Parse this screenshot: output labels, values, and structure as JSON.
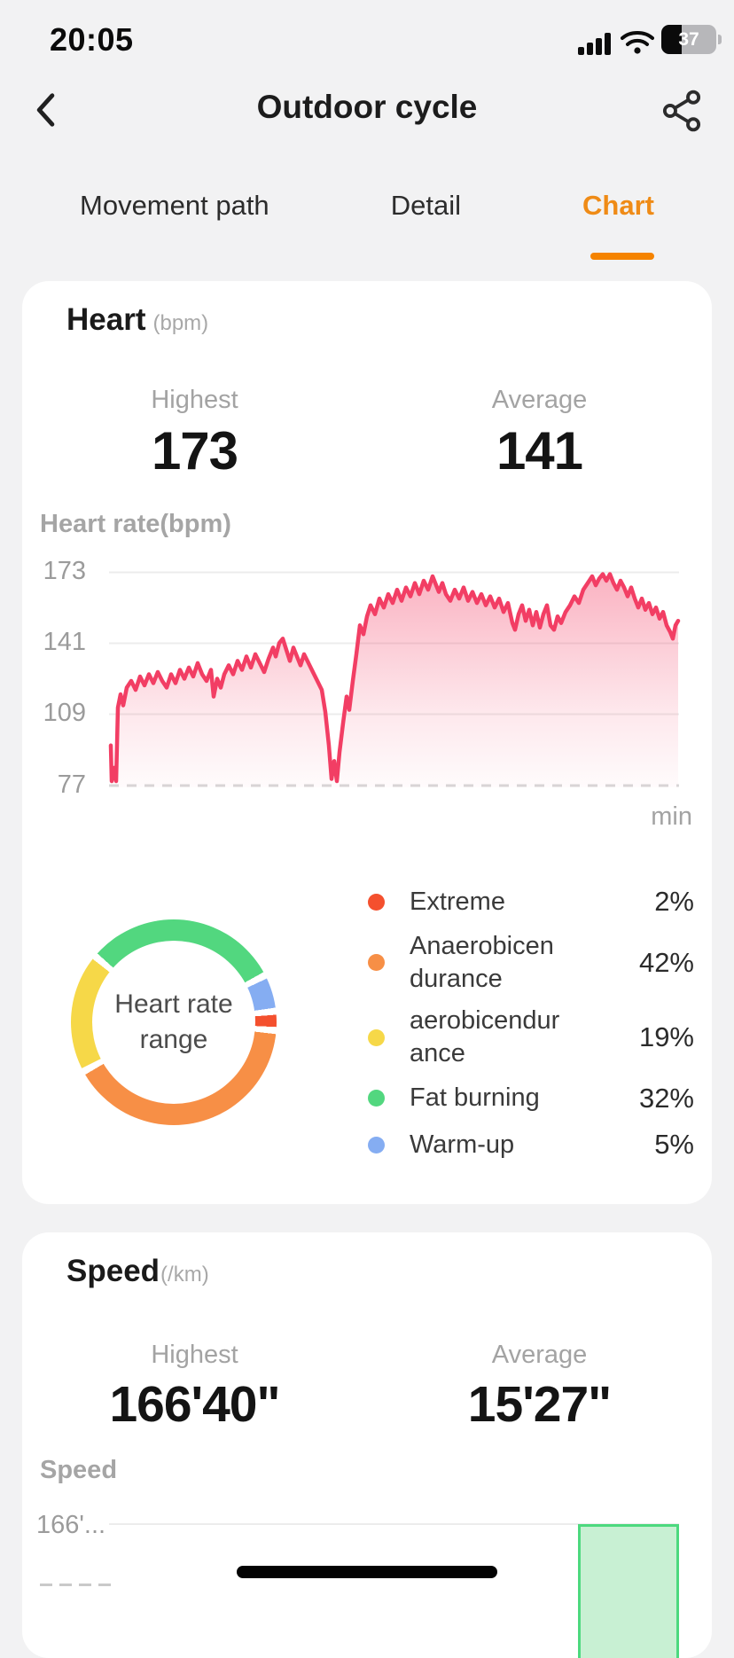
{
  "status_bar": {
    "time": "20:05",
    "battery": "37"
  },
  "header": {
    "title": "Outdoor cycle"
  },
  "tabs": [
    {
      "label": "Movement path",
      "active": false
    },
    {
      "label": "Detail",
      "active": false
    },
    {
      "label": "Chart",
      "active": true
    }
  ],
  "colors": {
    "accent_orange": "#ef8b16",
    "heart_line": "#f23e64",
    "card_bg": "#ffffff",
    "page_bg": "#f2f2f3"
  },
  "heart_card": {
    "title": "Heart",
    "unit": "(bpm)",
    "highest_label": "Highest",
    "highest_value": "173",
    "average_label": "Average",
    "average_value": "141",
    "donut_center_line1": "Heart rate",
    "donut_center_line2": "range"
  },
  "speed_card": {
    "title": "Speed",
    "unit": "(/km)",
    "highest_label": "Highest",
    "highest_value": "166'40\"",
    "average_label": "Average",
    "average_value": "15'27\""
  },
  "chart_data": [
    {
      "type": "line",
      "title": "Heart rate(bpm)",
      "ylabel": "Heart rate(bpm)",
      "x_unit": "min",
      "ylim": [
        77,
        173
      ],
      "ytick_labels": [
        "173",
        "141",
        "109",
        "77"
      ],
      "grid": true,
      "line_color": "#f23e64",
      "series": [
        {
          "name": "Heart rate",
          "points": [
            [
              2,
              95
            ],
            [
              3,
              79
            ],
            [
              6,
              85
            ],
            [
              8,
              79
            ],
            [
              10,
              112
            ],
            [
              13,
              118
            ],
            [
              16,
              113
            ],
            [
              20,
              121
            ],
            [
              25,
              124
            ],
            [
              30,
              120
            ],
            [
              35,
              126
            ],
            [
              40,
              122
            ],
            [
              45,
              127
            ],
            [
              50,
              123
            ],
            [
              55,
              128
            ],
            [
              60,
              124
            ],
            [
              65,
              121
            ],
            [
              70,
              127
            ],
            [
              75,
              123
            ],
            [
              80,
              129
            ],
            [
              85,
              125
            ],
            [
              90,
              130
            ],
            [
              95,
              126
            ],
            [
              100,
              132
            ],
            [
              105,
              127
            ],
            [
              110,
              124
            ],
            [
              115,
              129
            ],
            [
              118,
              117
            ],
            [
              122,
              125
            ],
            [
              126,
              121
            ],
            [
              130,
              127
            ],
            [
              135,
              131
            ],
            [
              140,
              127
            ],
            [
              145,
              133
            ],
            [
              150,
              129
            ],
            [
              155,
              135
            ],
            [
              160,
              130
            ],
            [
              165,
              136
            ],
            [
              170,
              132
            ],
            [
              175,
              128
            ],
            [
              180,
              134
            ],
            [
              185,
              139
            ],
            [
              188,
              135
            ],
            [
              192,
              141
            ],
            [
              196,
              143
            ],
            [
              200,
              138
            ],
            [
              204,
              133
            ],
            [
              208,
              139
            ],
            [
              212,
              135
            ],
            [
              216,
              131
            ],
            [
              220,
              136
            ],
            [
              225,
              132
            ],
            [
              230,
              128
            ],
            [
              235,
              124
            ],
            [
              240,
              120
            ],
            [
              244,
              110
            ],
            [
              248,
              95
            ],
            [
              251,
              80
            ],
            [
              254,
              88
            ],
            [
              257,
              79
            ],
            [
              260,
              92
            ],
            [
              264,
              105
            ],
            [
              268,
              117
            ],
            [
              271,
              111
            ],
            [
              275,
              124
            ],
            [
              279,
              136
            ],
            [
              283,
              149
            ],
            [
              287,
              145
            ],
            [
              291,
              153
            ],
            [
              295,
              158
            ],
            [
              300,
              154
            ],
            [
              305,
              161
            ],
            [
              310,
              157
            ],
            [
              315,
              163
            ],
            [
              320,
              159
            ],
            [
              325,
              165
            ],
            [
              330,
              160
            ],
            [
              335,
              166
            ],
            [
              340,
              162
            ],
            [
              345,
              168
            ],
            [
              350,
              163
            ],
            [
              355,
              169
            ],
            [
              360,
              165
            ],
            [
              365,
              171
            ],
            [
              368,
              168
            ],
            [
              372,
              164
            ],
            [
              376,
              168
            ],
            [
              380,
              163
            ],
            [
              385,
              160
            ],
            [
              390,
              165
            ],
            [
              395,
              161
            ],
            [
              400,
              166
            ],
            [
              405,
              160
            ],
            [
              410,
              164
            ],
            [
              415,
              159
            ],
            [
              420,
              163
            ],
            [
              425,
              158
            ],
            [
              430,
              162
            ],
            [
              435,
              157
            ],
            [
              440,
              161
            ],
            [
              445,
              155
            ],
            [
              450,
              159
            ],
            [
              455,
              150
            ],
            [
              458,
              147
            ],
            [
              462,
              154
            ],
            [
              466,
              158
            ],
            [
              470,
              151
            ],
            [
              474,
              156
            ],
            [
              478,
              149
            ],
            [
              482,
              155
            ],
            [
              486,
              148
            ],
            [
              490,
              154
            ],
            [
              494,
              158
            ],
            [
              498,
              149
            ],
            [
              502,
              147
            ],
            [
              506,
              153
            ],
            [
              510,
              150
            ],
            [
              515,
              155
            ],
            [
              520,
              158
            ],
            [
              525,
              162
            ],
            [
              530,
              159
            ],
            [
              535,
              165
            ],
            [
              540,
              168
            ],
            [
              545,
              171
            ],
            [
              549,
              167
            ],
            [
              553,
              170
            ],
            [
              557,
              172
            ],
            [
              561,
              169
            ],
            [
              565,
              172
            ],
            [
              569,
              168
            ],
            [
              573,
              165
            ],
            [
              577,
              169
            ],
            [
              581,
              166
            ],
            [
              585,
              162
            ],
            [
              589,
              166
            ],
            [
              593,
              161
            ],
            [
              597,
              157
            ],
            [
              601,
              161
            ],
            [
              605,
              156
            ],
            [
              609,
              159
            ],
            [
              613,
              154
            ],
            [
              617,
              157
            ],
            [
              621,
              152
            ],
            [
              625,
              155
            ],
            [
              629,
              149
            ],
            [
              633,
              146
            ],
            [
              636,
              143
            ],
            [
              639,
              149
            ],
            [
              642,
              151
            ]
          ]
        }
      ]
    },
    {
      "type": "donut",
      "title": "Heart rate range",
      "legend_position": "right",
      "arc_order": [
        3,
        4,
        0,
        1,
        2
      ],
      "arc_start_deg": -48,
      "segments": [
        {
          "label": "Extreme",
          "pct": 2,
          "pct_text": "2%",
          "color": "#f4502e"
        },
        {
          "label": "Anaerobicen durance",
          "pct": 42,
          "pct_text": "42%",
          "color": "#f78f46"
        },
        {
          "label": "aerobicendur ance",
          "pct": 19,
          "pct_text": "19%",
          "color": "#f6d848"
        },
        {
          "label": "Fat burning",
          "pct": 32,
          "pct_text": "32%",
          "color": "#52d77f"
        },
        {
          "label": "Warm-up",
          "pct": 5,
          "pct_text": "5%",
          "color": "#85adf2"
        }
      ]
    },
    {
      "type": "bar",
      "title": "Speed",
      "ylabel": "Speed",
      "ytick_labels": [
        "166'..."
      ],
      "bar_fill": "#c8f0d3",
      "bar_border": "#4cd97e",
      "note": "chart partially cut off at bottom of screen; one bar visible"
    }
  ]
}
